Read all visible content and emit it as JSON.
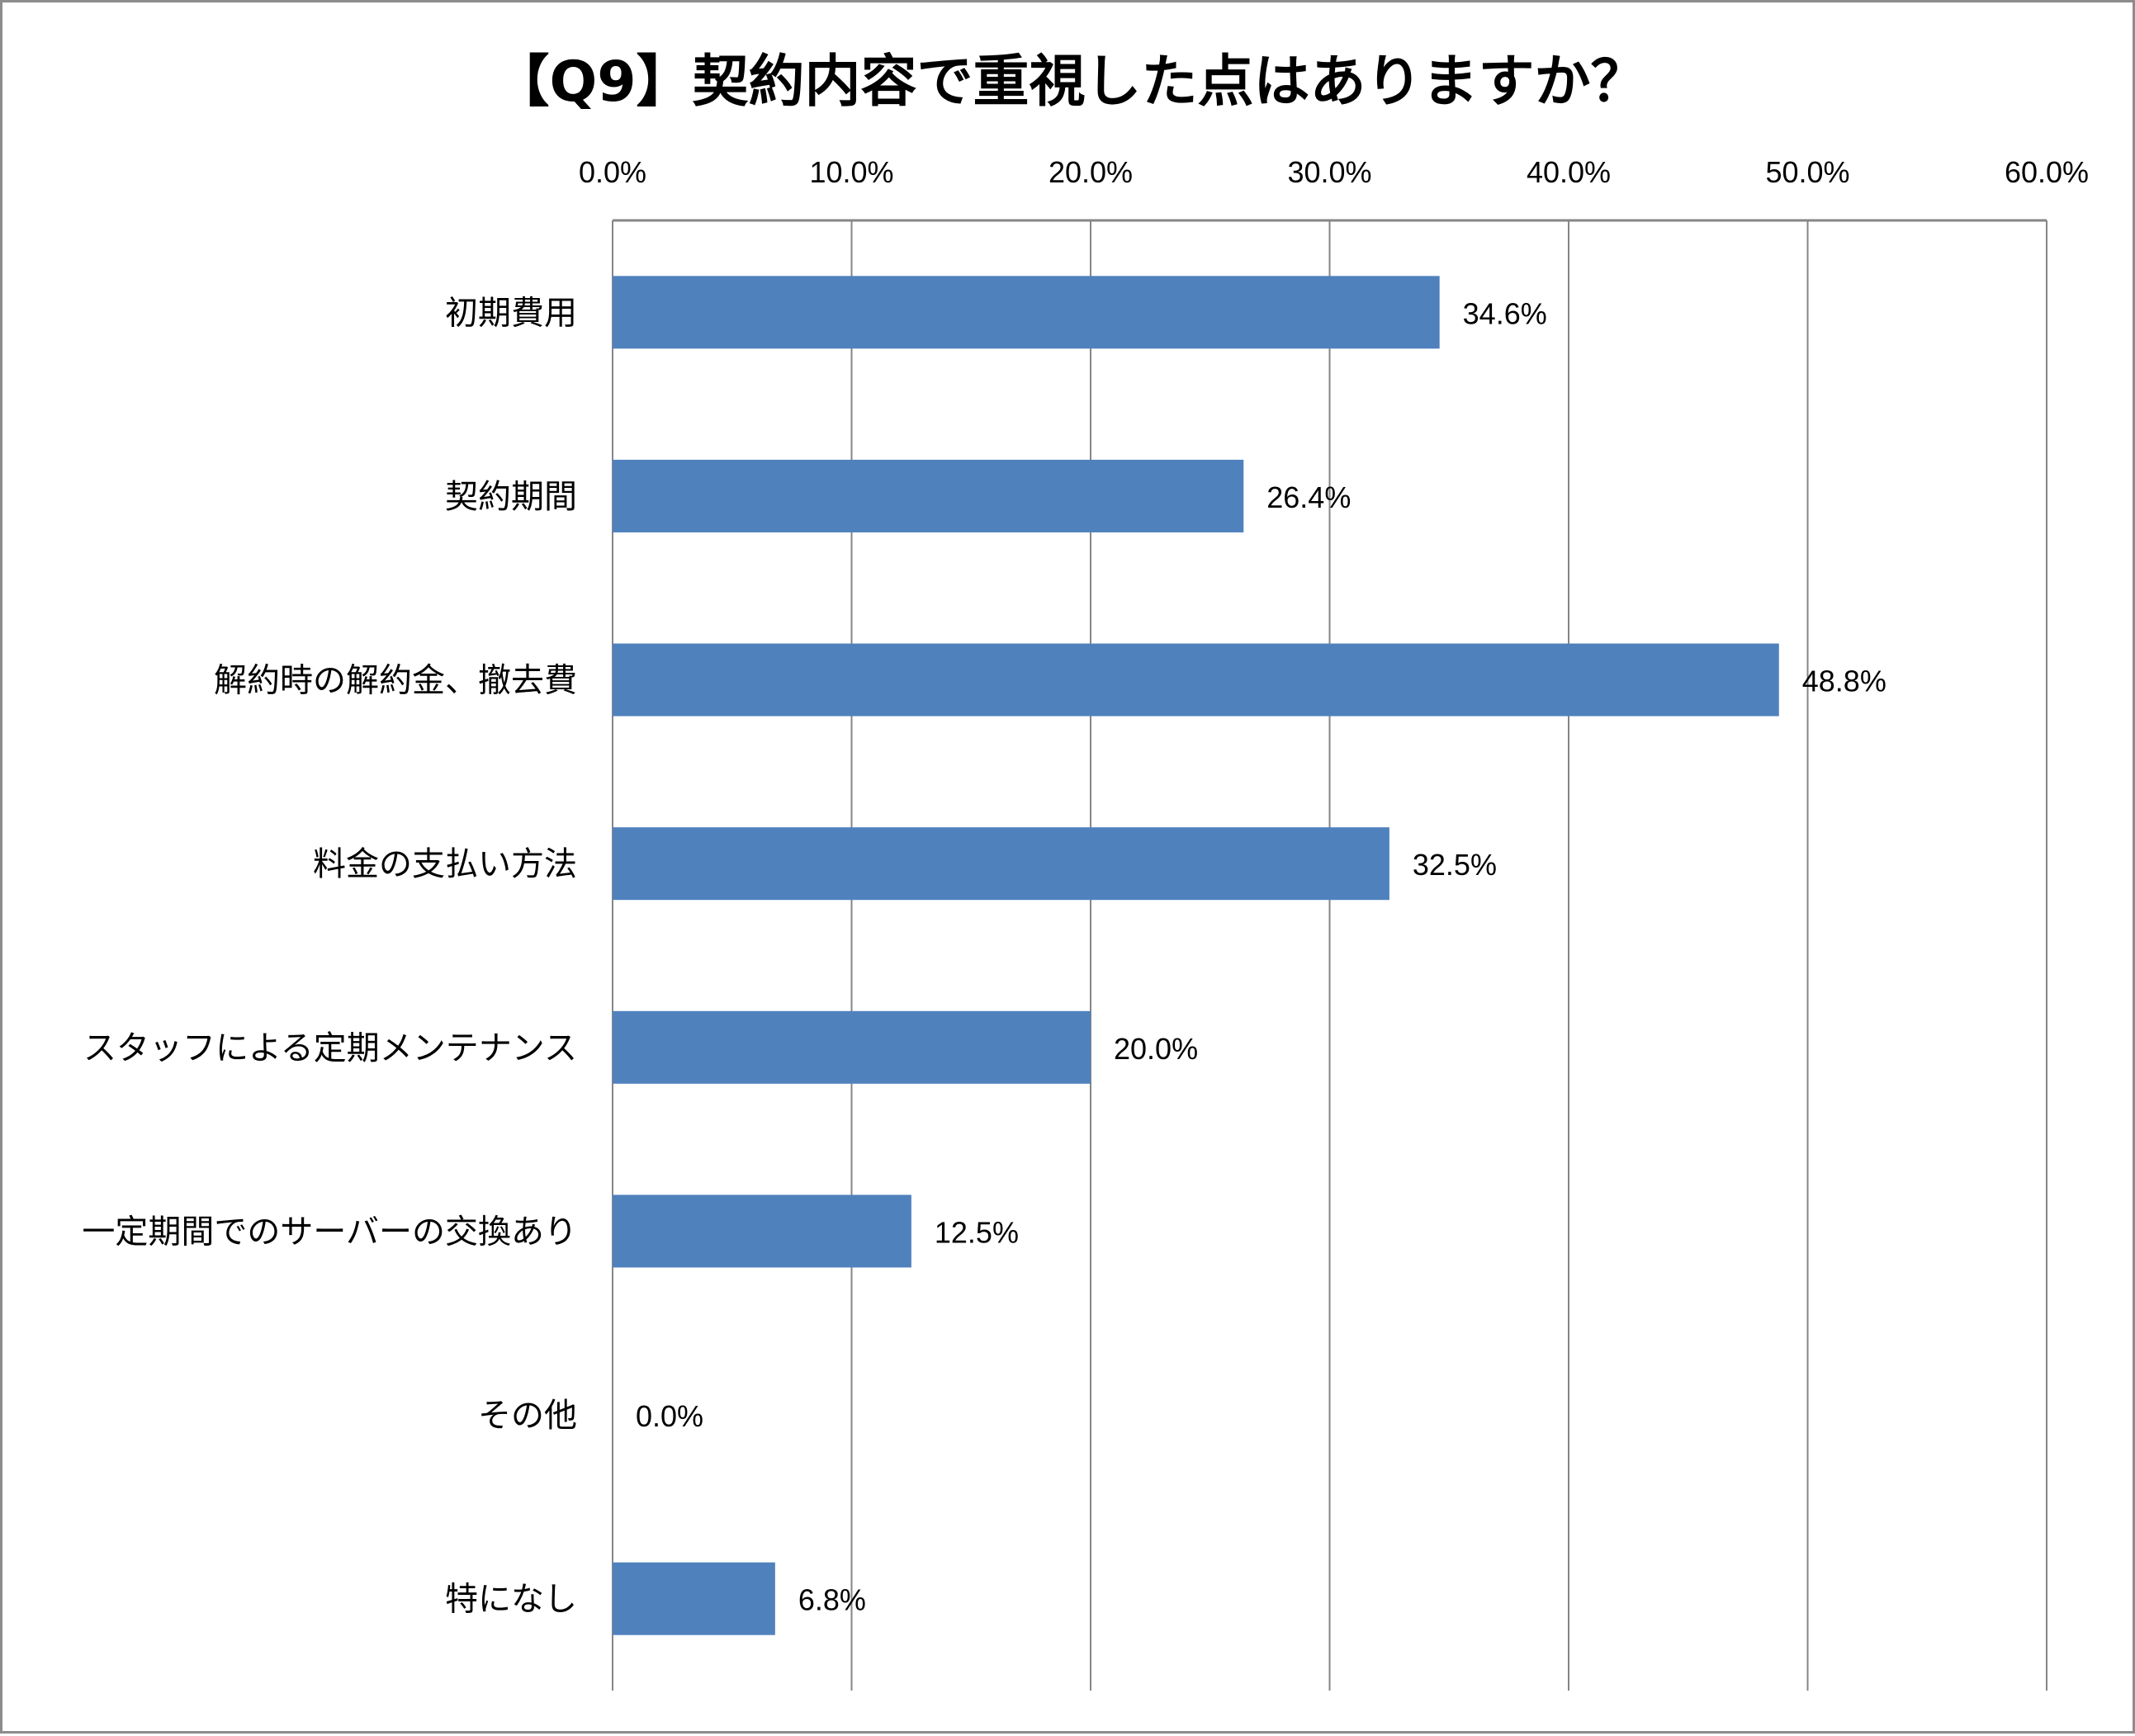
{
  "chart_data": {
    "type": "bar",
    "orientation": "horizontal",
    "title": "【Q9】契約内容で重視した点はありますか？",
    "categories": [
      "初期費用",
      "契約期間",
      "解約時の解約金、撤去費",
      "料金の支払い方法",
      "スタッフによる定期メンテナンス",
      "一定期間でのサーバーの交換あり",
      "その他",
      "特になし"
    ],
    "values": [
      34.6,
      26.4,
      48.8,
      32.5,
      20.0,
      12.5,
      0.0,
      6.8
    ],
    "value_labels": [
      "34.6%",
      "26.4%",
      "48.8%",
      "32.5%",
      "20.0%",
      "12.5%",
      "0.0%",
      "6.8%"
    ],
    "xlim": [
      0,
      60
    ],
    "x_ticks": [
      "0.0%",
      "10.0%",
      "20.0%",
      "30.0%",
      "40.0%",
      "50.0%",
      "60.0%"
    ],
    "x_axis_position": "top",
    "grid": true,
    "legend": "none",
    "bar_color": "#4f81bd",
    "xlabel": "",
    "ylabel": ""
  }
}
